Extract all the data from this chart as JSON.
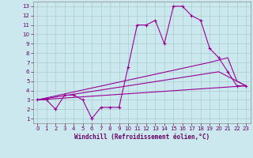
{
  "bg_color": "#cce8ef",
  "line_color": "#990099",
  "grid_color": "#aacccc",
  "xlabel": "Windchill (Refroidissement éolien,°C)",
  "xlabel_color": "#660066",
  "tick_color": "#660066",
  "xlim": [
    -0.5,
    23.5
  ],
  "ylim": [
    0.5,
    13.5
  ],
  "xticks": [
    0,
    1,
    2,
    3,
    4,
    5,
    6,
    7,
    8,
    9,
    10,
    11,
    12,
    13,
    14,
    15,
    16,
    17,
    18,
    19,
    20,
    21,
    22,
    23
  ],
  "yticks": [
    1,
    2,
    3,
    4,
    5,
    6,
    7,
    8,
    9,
    10,
    11,
    12,
    13
  ],
  "curve1_x": [
    0,
    1,
    2,
    3,
    4,
    5,
    6,
    7,
    8,
    9,
    10,
    11,
    12,
    13,
    14,
    15,
    16,
    17,
    18,
    19,
    20,
    21,
    22,
    23
  ],
  "curve1_y": [
    3,
    3,
    2,
    3.5,
    3.5,
    3,
    1,
    2.2,
    2.2,
    2.2,
    6.5,
    11,
    11,
    11.5,
    9,
    13,
    13,
    12,
    11.5,
    8.5,
    7.5,
    6,
    4.5,
    4.5
  ],
  "curve2_x": [
    0,
    23
  ],
  "curve2_y": [
    3,
    4.5
  ],
  "curve3_x": [
    0,
    20,
    22,
    23
  ],
  "curve3_y": [
    3,
    6,
    5,
    4.5
  ],
  "curve4_x": [
    0,
    19,
    21,
    22,
    23
  ],
  "curve4_y": [
    3,
    7,
    7.5,
    5,
    4.5
  ]
}
